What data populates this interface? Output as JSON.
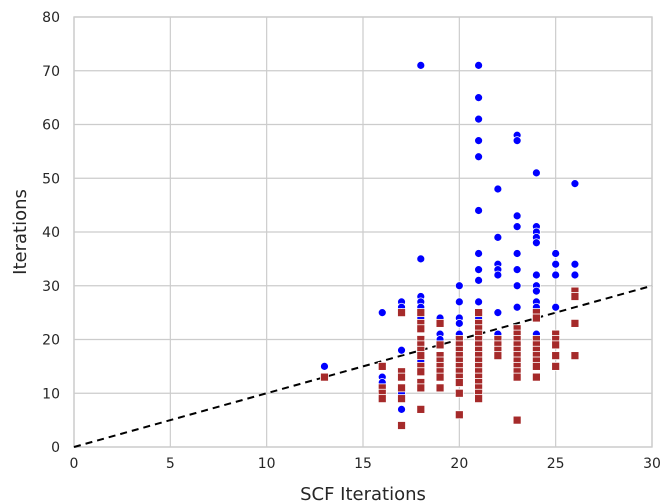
{
  "chart_data": {
    "type": "scatter",
    "xlabel": "SCF Iterations",
    "ylabel": "Iterations",
    "xlim": [
      0,
      30
    ],
    "ylim": [
      0,
      80
    ],
    "xticks": [
      0,
      5,
      10,
      15,
      20,
      25,
      30
    ],
    "yticks": [
      0,
      10,
      20,
      30,
      40,
      50,
      60,
      70,
      80
    ],
    "grid": true,
    "reference_line": {
      "style": "dashed",
      "color": "#000000",
      "x": [
        0,
        30
      ],
      "y": [
        0,
        30
      ]
    },
    "series": [
      {
        "marker": "circle",
        "color": "#0000ff",
        "points": [
          [
            13,
            15
          ],
          [
            16,
            25
          ],
          [
            16,
            13
          ],
          [
            16,
            12
          ],
          [
            16,
            11
          ],
          [
            17,
            27
          ],
          [
            17,
            26
          ],
          [
            17,
            25
          ],
          [
            17,
            18
          ],
          [
            17,
            14
          ],
          [
            17,
            10
          ],
          [
            17,
            7
          ],
          [
            18,
            71
          ],
          [
            18,
            35
          ],
          [
            18,
            28
          ],
          [
            18,
            27
          ],
          [
            18,
            26
          ],
          [
            18,
            25
          ],
          [
            18,
            24
          ],
          [
            18,
            22
          ],
          [
            18,
            20
          ],
          [
            18,
            18
          ],
          [
            18,
            16
          ],
          [
            19,
            24
          ],
          [
            19,
            23
          ],
          [
            19,
            21
          ],
          [
            19,
            20
          ],
          [
            19,
            19
          ],
          [
            19,
            17
          ],
          [
            20,
            30
          ],
          [
            20,
            27
          ],
          [
            20,
            24
          ],
          [
            20,
            23
          ],
          [
            20,
            21
          ],
          [
            20,
            20
          ],
          [
            20,
            18
          ],
          [
            20,
            16
          ],
          [
            20,
            14
          ],
          [
            20,
            12
          ],
          [
            21,
            71
          ],
          [
            21,
            65
          ],
          [
            21,
            61
          ],
          [
            21,
            57
          ],
          [
            21,
            54
          ],
          [
            21,
            44
          ],
          [
            21,
            36
          ],
          [
            21,
            33
          ],
          [
            21,
            31
          ],
          [
            21,
            27
          ],
          [
            21,
            24
          ],
          [
            21,
            22
          ],
          [
            21,
            20
          ],
          [
            21,
            19
          ],
          [
            21,
            17
          ],
          [
            22,
            48
          ],
          [
            22,
            39
          ],
          [
            22,
            34
          ],
          [
            22,
            33
          ],
          [
            22,
            32
          ],
          [
            22,
            25
          ],
          [
            22,
            21
          ],
          [
            23,
            58
          ],
          [
            23,
            57
          ],
          [
            23,
            43
          ],
          [
            23,
            41
          ],
          [
            23,
            36
          ],
          [
            23,
            33
          ],
          [
            23,
            30
          ],
          [
            23,
            26
          ],
          [
            23,
            22
          ],
          [
            23,
            20
          ],
          [
            24,
            51
          ],
          [
            24,
            41
          ],
          [
            24,
            40
          ],
          [
            24,
            39
          ],
          [
            24,
            38
          ],
          [
            24,
            32
          ],
          [
            24,
            30
          ],
          [
            24,
            29
          ],
          [
            24,
            27
          ],
          [
            24,
            26
          ],
          [
            24,
            24
          ],
          [
            24,
            21
          ],
          [
            25,
            36
          ],
          [
            25,
            34
          ],
          [
            25,
            32
          ],
          [
            25,
            26
          ],
          [
            26,
            49
          ],
          [
            26,
            34
          ],
          [
            26,
            32
          ],
          [
            26,
            29
          ],
          [
            26,
            28
          ]
        ]
      },
      {
        "marker": "square",
        "color": "#a52a2a",
        "points": [
          [
            13,
            13
          ],
          [
            16,
            15
          ],
          [
            16,
            11
          ],
          [
            16,
            10
          ],
          [
            16,
            9
          ],
          [
            17,
            25
          ],
          [
            17,
            14
          ],
          [
            17,
            13
          ],
          [
            17,
            11
          ],
          [
            17,
            9
          ],
          [
            17,
            4
          ],
          [
            18,
            25
          ],
          [
            18,
            23
          ],
          [
            18,
            22
          ],
          [
            18,
            20
          ],
          [
            18,
            19
          ],
          [
            18,
            18
          ],
          [
            18,
            17
          ],
          [
            18,
            15
          ],
          [
            18,
            14
          ],
          [
            18,
            12
          ],
          [
            18,
            11
          ],
          [
            18,
            7
          ],
          [
            19,
            23
          ],
          [
            19,
            19
          ],
          [
            19,
            17
          ],
          [
            19,
            16
          ],
          [
            19,
            15
          ],
          [
            19,
            14
          ],
          [
            19,
            13
          ],
          [
            19,
            11
          ],
          [
            20,
            20
          ],
          [
            20,
            19
          ],
          [
            20,
            18
          ],
          [
            20,
            17
          ],
          [
            20,
            16
          ],
          [
            20,
            15
          ],
          [
            20,
            14
          ],
          [
            20,
            13
          ],
          [
            20,
            12
          ],
          [
            20,
            10
          ],
          [
            20,
            6
          ],
          [
            21,
            25
          ],
          [
            21,
            23
          ],
          [
            21,
            22
          ],
          [
            21,
            21
          ],
          [
            21,
            20
          ],
          [
            21,
            19
          ],
          [
            21,
            18
          ],
          [
            21,
            17
          ],
          [
            21,
            16
          ],
          [
            21,
            15
          ],
          [
            21,
            14
          ],
          [
            21,
            13
          ],
          [
            21,
            12
          ],
          [
            21,
            11
          ],
          [
            21,
            10
          ],
          [
            21,
            9
          ],
          [
            22,
            20
          ],
          [
            22,
            19
          ],
          [
            22,
            18
          ],
          [
            22,
            17
          ],
          [
            23,
            22
          ],
          [
            23,
            21
          ],
          [
            23,
            20
          ],
          [
            23,
            19
          ],
          [
            23,
            18
          ],
          [
            23,
            17
          ],
          [
            23,
            16
          ],
          [
            23,
            15
          ],
          [
            23,
            14
          ],
          [
            23,
            13
          ],
          [
            23,
            5
          ],
          [
            24,
            25
          ],
          [
            24,
            24
          ],
          [
            24,
            20
          ],
          [
            24,
            19
          ],
          [
            24,
            18
          ],
          [
            24,
            17
          ],
          [
            24,
            16
          ],
          [
            24,
            15
          ],
          [
            24,
            13
          ],
          [
            25,
            21
          ],
          [
            25,
            20
          ],
          [
            25,
            19
          ],
          [
            25,
            17
          ],
          [
            25,
            15
          ],
          [
            26,
            29
          ],
          [
            26,
            28
          ],
          [
            26,
            23
          ],
          [
            26,
            17
          ]
        ]
      }
    ]
  }
}
